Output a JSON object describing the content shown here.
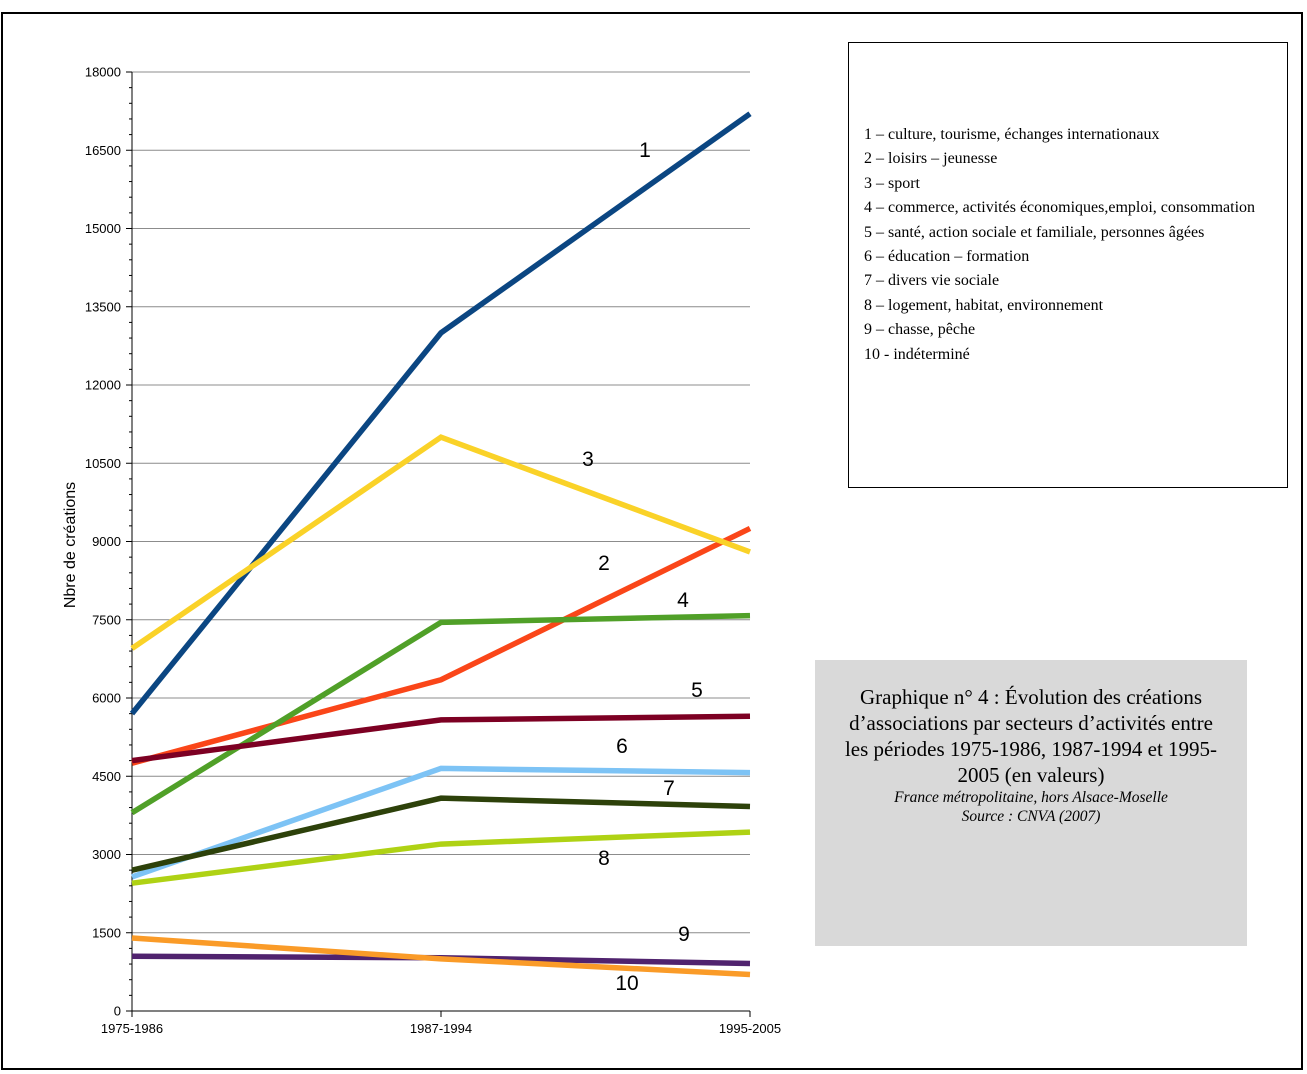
{
  "chart_data": {
    "type": "line",
    "title": "Graphique n° 4 : Évolution des créations d’associations par secteurs d’activités entre les périodes  1975-1986, 1987-1994 et 1995-2005 (en valeurs)",
    "subtitle": "France métropolitaine, hors Alsace-Moselle",
    "source": "Source : CNVA (2007)",
    "xlabel": "",
    "ylabel": "Nbre de créations",
    "categories": [
      "1975-1986",
      "1987-1994",
      "1995-2005"
    ],
    "ylim": [
      0,
      18000
    ],
    "yticks": [
      0,
      1500,
      3000,
      4500,
      6000,
      7500,
      9000,
      10500,
      12000,
      13500,
      15000,
      16500,
      18000
    ],
    "grid": true,
    "series": [
      {
        "name": "1",
        "color": "#0b4682",
        "values": [
          5700,
          13000,
          17200
        ]
      },
      {
        "name": "2",
        "color": "#fa4619",
        "values": [
          4750,
          6350,
          9250
        ]
      },
      {
        "name": "3",
        "color": "#fad228",
        "values": [
          6950,
          11000,
          8800
        ]
      },
      {
        "name": "4",
        "color": "#50a028",
        "values": [
          3800,
          7450,
          7580
        ]
      },
      {
        "name": "5",
        "color": "#7d0023",
        "values": [
          4800,
          5580,
          5650
        ]
      },
      {
        "name": "6",
        "color": "#7dc3f5",
        "values": [
          2570,
          4650,
          4570
        ]
      },
      {
        "name": "7",
        "color": "#2d410a",
        "values": [
          2700,
          4080,
          3920
        ]
      },
      {
        "name": "8",
        "color": "#afd214",
        "values": [
          2450,
          3200,
          3430
        ]
      },
      {
        "name": "9",
        "color": "#50236e",
        "values": [
          1050,
          1020,
          910
        ]
      },
      {
        "name": "10",
        "color": "#fa9b28",
        "values": [
          1400,
          1000,
          700
        ]
      }
    ],
    "legend": [
      "1 – culture, tourisme, échanges internationaux",
      "2 – loisirs – jeunesse",
      "3 – sport",
      "4 – commerce, activités économiques,emploi, consommation",
      "5 – santé, action sociale et familiale, personnes âgées",
      "6 – éducation – formation",
      "7 – divers vie sociale",
      "8 – logement, habitat, environnement",
      "9 – chasse, pêche",
      "10  - indéterminé"
    ]
  }
}
